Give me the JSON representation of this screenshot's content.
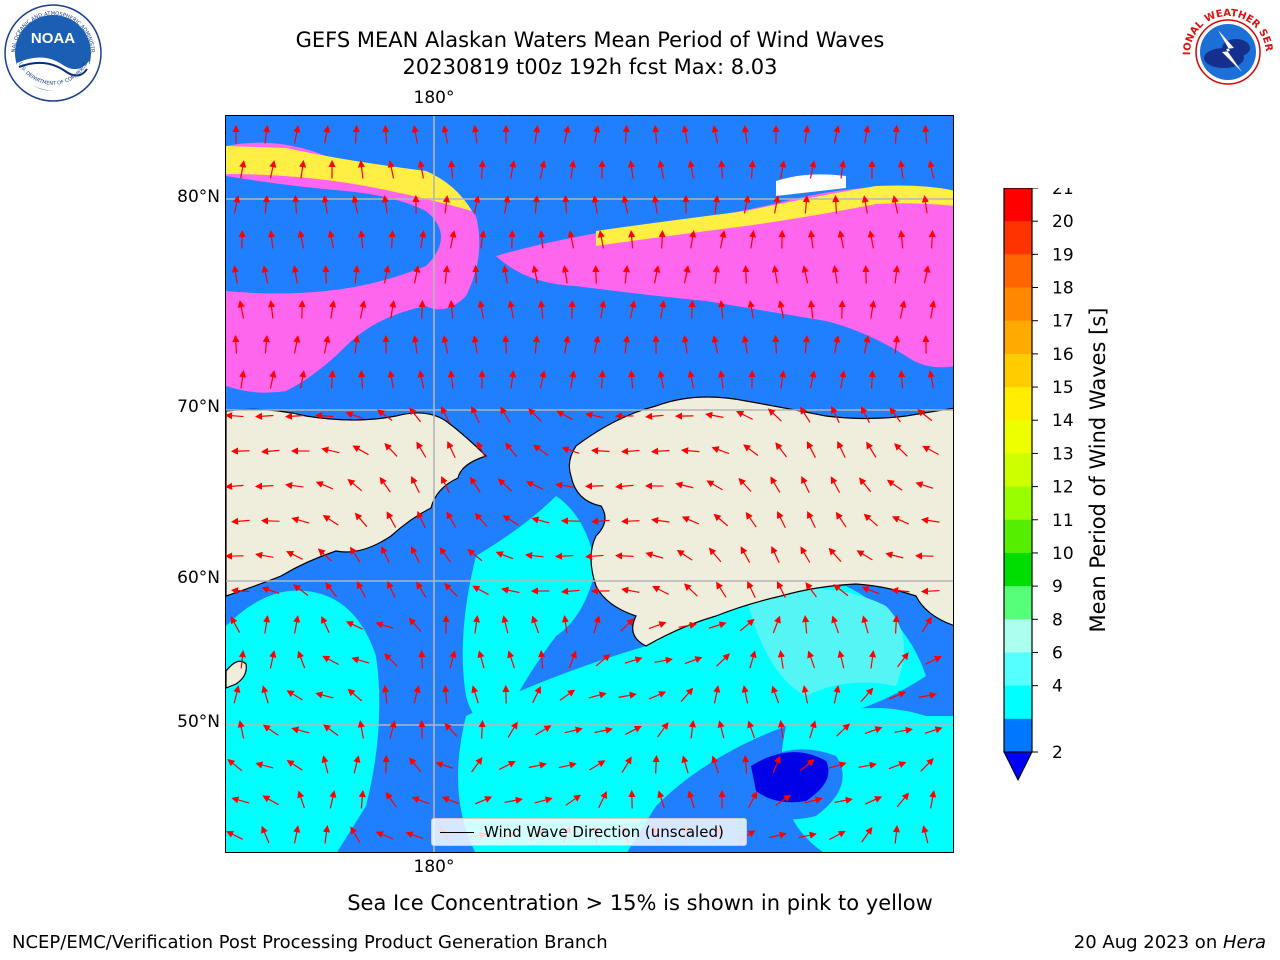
{
  "title": {
    "line1": "GEFS MEAN Alaskan Waters Mean Period of Wind Waves",
    "line2": "20230819 t00z 192h fcst   Max: 8.03"
  },
  "map": {
    "lon_label_top": "180°",
    "lon_label_bottom": "180°",
    "lat_labels": [
      "80°N",
      "70°N",
      "60°N",
      "50°N"
    ],
    "legend_label": "Wind Wave Direction (unscaled)",
    "colors": {
      "land": "#efeddc",
      "blue": "#1f7fff",
      "cyan": "#00ffff",
      "light_cyan": "#55f5f5",
      "dark_blue": "#0000e6",
      "ice_pink": "#ff66ee",
      "ice_yellow": "#ffee44",
      "arrow": "#ff0000"
    }
  },
  "colorbar": {
    "label": "Mean Period of Wind Waves [s]",
    "ticks": [
      "21",
      "20",
      "19",
      "18",
      "17",
      "16",
      "15",
      "14",
      "13",
      "12",
      "11",
      "10",
      "9",
      "8",
      "6",
      "4",
      "2"
    ],
    "colors": [
      "#ff0000",
      "#ff3300",
      "#ff6600",
      "#ff8800",
      "#ffaa00",
      "#ffcc00",
      "#ffee00",
      "#eeff00",
      "#ccff00",
      "#99ff00",
      "#55ee00",
      "#00dd00",
      "#55ff77",
      "#aaffee",
      "#55ffff",
      "#00ffff",
      "#0077ff"
    ],
    "under_color": "#0000ff"
  },
  "caption": "Sea Ice Concentration > 15% is shown in pink to yellow",
  "footer": {
    "left": "NCEP/EMC/Verification Post Processing Product Generation Branch",
    "right_prefix": "20 Aug 2023 on ",
    "right_system": "Hera"
  },
  "logos": {
    "noaa_text": "NOAA",
    "noaa_ring": "NATIONAL OCEANIC AND ATMOSPHERIC ADMINISTRATION",
    "noaa_ring_bottom": "U.S. DEPARTMENT OF COMMERCE",
    "nws_ring": "NATIONAL WEATHER SERVICE"
  }
}
